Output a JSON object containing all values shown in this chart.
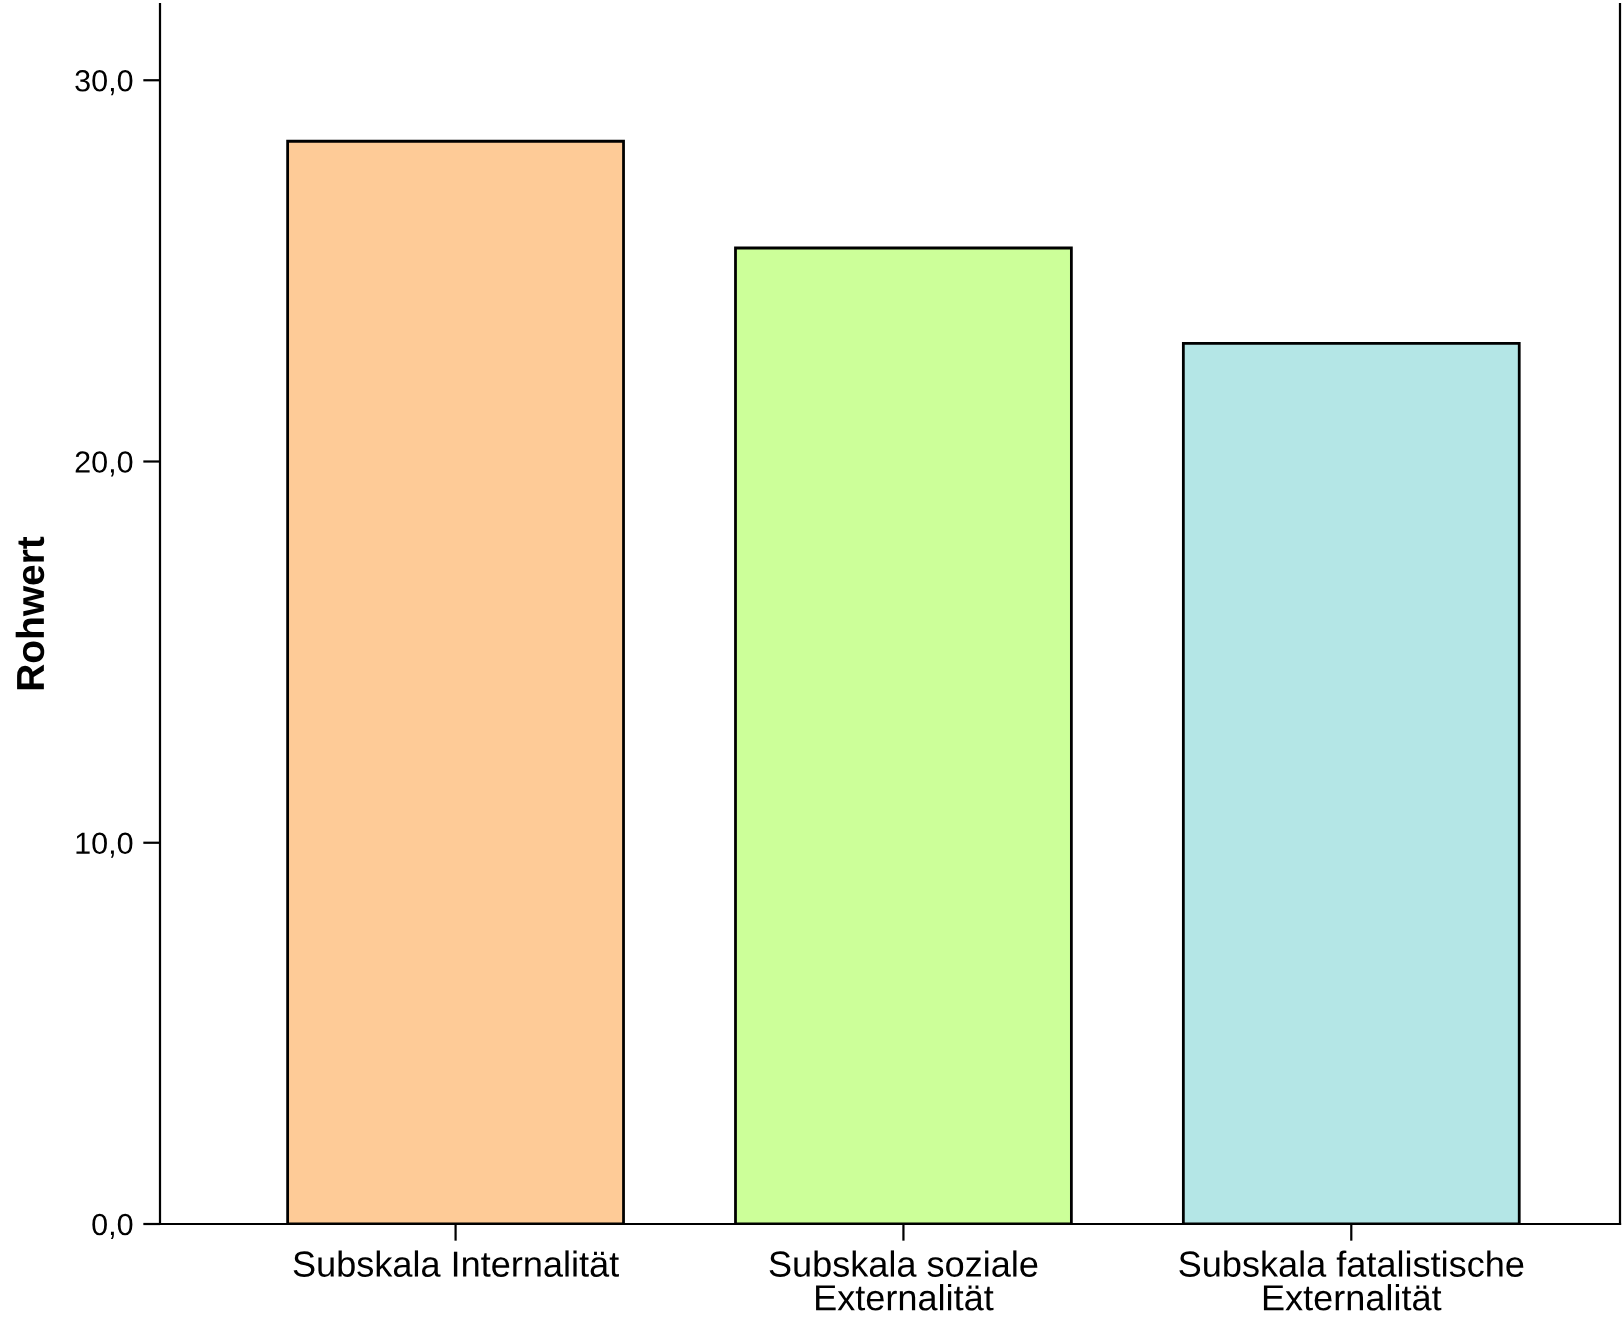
{
  "chart_data": {
    "type": "bar",
    "ylabel": "Rohwert",
    "categories": [
      "Subskala Internalität",
      "Subskala soziale\nExternalität",
      "Subskala fatalistische\nExternalität"
    ],
    "values": [
      28.4,
      25.6,
      23.1
    ],
    "colors": [
      "#fecb97",
      "#ccff99",
      "#b4e6e6"
    ],
    "ylim": [
      0,
      32
    ],
    "yticks": [
      {
        "value": 0,
        "label": "0,0"
      },
      {
        "value": 10,
        "label": "10,0"
      },
      {
        "value": 20,
        "label": "20,0"
      },
      {
        "value": 30,
        "label": "30,0"
      }
    ],
    "grid": false
  }
}
